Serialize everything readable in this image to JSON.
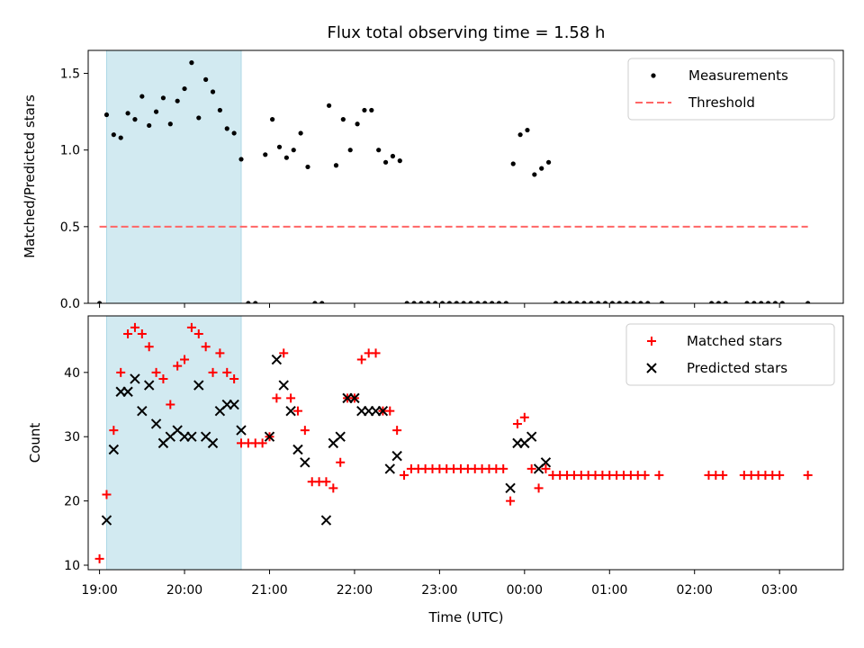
{
  "title": "Flux total observing time = 1.58 h",
  "colors": {
    "shade": "#add8e6",
    "measurement": "#000000",
    "threshold": "#ff6666",
    "matched": "#ff0000",
    "predicted": "#000000"
  },
  "chart_data": [
    {
      "type": "scatter",
      "ylabel": "Matched/Predicted stars",
      "xlim": [
        "18:52",
        "03:45"
      ],
      "ylim": [
        0,
        1.65
      ],
      "yticks": [
        0.0,
        0.5,
        1.0,
        1.5
      ],
      "ytick_labels": [
        "0.0",
        "0.5",
        "1.0",
        "1.5"
      ],
      "legend_position": "top-right",
      "shaded_interval": [
        "19:05",
        "20:40"
      ],
      "threshold": {
        "name": "Threshold",
        "y": 0.5,
        "x": [
          "19:00",
          "03:20"
        ],
        "style": "dashed"
      },
      "series": [
        {
          "name": "Measurements",
          "marker": "dot",
          "points": [
            [
              "19:00",
              0.0
            ],
            [
              "19:05",
              1.23
            ],
            [
              "19:10",
              1.1
            ],
            [
              "19:15",
              1.08
            ],
            [
              "19:20",
              1.24
            ],
            [
              "19:25",
              1.2
            ],
            [
              "19:30",
              1.35
            ],
            [
              "19:35",
              1.16
            ],
            [
              "19:40",
              1.25
            ],
            [
              "19:45",
              1.34
            ],
            [
              "19:50",
              1.17
            ],
            [
              "19:55",
              1.32
            ],
            [
              "20:00",
              1.4
            ],
            [
              "20:05",
              1.57
            ],
            [
              "20:10",
              1.21
            ],
            [
              "20:15",
              1.46
            ],
            [
              "20:20",
              1.38
            ],
            [
              "20:25",
              1.26
            ],
            [
              "20:30",
              1.14
            ],
            [
              "20:35",
              1.11
            ],
            [
              "20:40",
              0.94
            ],
            [
              "20:45",
              0.0
            ],
            [
              "20:50",
              0.0
            ],
            [
              "20:57",
              0.97
            ],
            [
              "21:02",
              1.2
            ],
            [
              "21:07",
              1.02
            ],
            [
              "21:12",
              0.95
            ],
            [
              "21:17",
              1.0
            ],
            [
              "21:22",
              1.11
            ],
            [
              "21:27",
              0.89
            ],
            [
              "21:32",
              0.0
            ],
            [
              "21:37",
              0.0
            ],
            [
              "21:42",
              1.29
            ],
            [
              "21:47",
              0.9
            ],
            [
              "21:52",
              1.2
            ],
            [
              "21:57",
              1.0
            ],
            [
              "22:02",
              1.17
            ],
            [
              "22:07",
              1.26
            ],
            [
              "22:12",
              1.26
            ],
            [
              "22:17",
              1.0
            ],
            [
              "22:22",
              0.92
            ],
            [
              "22:27",
              0.96
            ],
            [
              "22:32",
              0.93
            ],
            [
              "22:37",
              0.0
            ],
            [
              "22:42",
              0.0
            ],
            [
              "22:47",
              0.0
            ],
            [
              "22:52",
              0.0
            ],
            [
              "22:57",
              0.0
            ],
            [
              "23:02",
              0.0
            ],
            [
              "23:07",
              0.0
            ],
            [
              "23:12",
              0.0
            ],
            [
              "23:17",
              0.0
            ],
            [
              "23:22",
              0.0
            ],
            [
              "23:27",
              0.0
            ],
            [
              "23:32",
              0.0
            ],
            [
              "23:37",
              0.0
            ],
            [
              "23:42",
              0.0
            ],
            [
              "23:47",
              0.0
            ],
            [
              "23:52",
              0.91
            ],
            [
              "23:57",
              1.1
            ],
            [
              "00:02",
              1.13
            ],
            [
              "00:07",
              0.84
            ],
            [
              "00:12",
              0.88
            ],
            [
              "00:17",
              0.92
            ],
            [
              "00:22",
              0.0
            ],
            [
              "00:27",
              0.0
            ],
            [
              "00:32",
              0.0
            ],
            [
              "00:37",
              0.0
            ],
            [
              "00:42",
              0.0
            ],
            [
              "00:47",
              0.0
            ],
            [
              "00:52",
              0.0
            ],
            [
              "00:57",
              0.0
            ],
            [
              "01:02",
              0.0
            ],
            [
              "01:07",
              0.0
            ],
            [
              "01:12",
              0.0
            ],
            [
              "01:17",
              0.0
            ],
            [
              "01:22",
              0.0
            ],
            [
              "01:27",
              0.0
            ],
            [
              "01:37",
              0.0
            ],
            [
              "02:12",
              0.0
            ],
            [
              "02:17",
              0.0
            ],
            [
              "02:22",
              0.0
            ],
            [
              "02:37",
              0.0
            ],
            [
              "02:42",
              0.0
            ],
            [
              "02:47",
              0.0
            ],
            [
              "02:52",
              0.0
            ],
            [
              "02:57",
              0.0
            ],
            [
              "03:02",
              0.0
            ],
            [
              "03:20",
              0.0
            ]
          ]
        }
      ]
    },
    {
      "type": "scatter",
      "ylabel": "Count",
      "xlabel": "Time (UTC)",
      "xlim": [
        "18:52",
        "03:45"
      ],
      "ylim": [
        9.3,
        48.8
      ],
      "yticks": [
        10,
        20,
        30,
        40
      ],
      "ytick_labels": [
        "10",
        "20",
        "30",
        "40"
      ],
      "xtick_labels": [
        "19:00",
        "20:00",
        "21:00",
        "22:00",
        "23:00",
        "00:00",
        "01:00",
        "02:00",
        "03:00"
      ],
      "legend_position": "top-right",
      "shaded_interval": [
        "19:05",
        "20:40"
      ],
      "series": [
        {
          "name": "Matched stars",
          "marker": "plus",
          "points": [
            [
              "19:00",
              11
            ],
            [
              "19:05",
              21
            ],
            [
              "19:10",
              31
            ],
            [
              "19:15",
              40
            ],
            [
              "19:20",
              46
            ],
            [
              "19:25",
              47
            ],
            [
              "19:30",
              46
            ],
            [
              "19:35",
              44
            ],
            [
              "19:40",
              40
            ],
            [
              "19:45",
              39
            ],
            [
              "19:50",
              35
            ],
            [
              "19:55",
              41
            ],
            [
              "20:00",
              42
            ],
            [
              "20:05",
              47
            ],
            [
              "20:10",
              46
            ],
            [
              "20:15",
              44
            ],
            [
              "20:20",
              40
            ],
            [
              "20:25",
              43
            ],
            [
              "20:30",
              40
            ],
            [
              "20:35",
              39
            ],
            [
              "20:40",
              29
            ],
            [
              "20:45",
              29
            ],
            [
              "20:50",
              29
            ],
            [
              "20:55",
              29
            ],
            [
              "21:00",
              30
            ],
            [
              "21:05",
              36
            ],
            [
              "21:10",
              43
            ],
            [
              "21:15",
              36
            ],
            [
              "21:20",
              34
            ],
            [
              "21:25",
              31
            ],
            [
              "21:30",
              23
            ],
            [
              "21:35",
              23
            ],
            [
              "21:40",
              23
            ],
            [
              "21:45",
              22
            ],
            [
              "21:50",
              26
            ],
            [
              "21:55",
              36
            ],
            [
              "22:00",
              36
            ],
            [
              "22:05",
              42
            ],
            [
              "22:10",
              43
            ],
            [
              "22:15",
              43
            ],
            [
              "22:20",
              34
            ],
            [
              "22:25",
              34
            ],
            [
              "22:30",
              31
            ],
            [
              "22:35",
              24
            ],
            [
              "22:40",
              25
            ],
            [
              "22:45",
              25
            ],
            [
              "22:50",
              25
            ],
            [
              "22:55",
              25
            ],
            [
              "23:00",
              25
            ],
            [
              "23:05",
              25
            ],
            [
              "23:10",
              25
            ],
            [
              "23:15",
              25
            ],
            [
              "23:20",
              25
            ],
            [
              "23:25",
              25
            ],
            [
              "23:30",
              25
            ],
            [
              "23:35",
              25
            ],
            [
              "23:40",
              25
            ],
            [
              "23:45",
              25
            ],
            [
              "23:50",
              20
            ],
            [
              "23:55",
              32
            ],
            [
              "00:00",
              33
            ],
            [
              "00:05",
              25
            ],
            [
              "00:10",
              22
            ],
            [
              "00:15",
              25
            ],
            [
              "00:20",
              24
            ],
            [
              "00:25",
              24
            ],
            [
              "00:30",
              24
            ],
            [
              "00:35",
              24
            ],
            [
              "00:40",
              24
            ],
            [
              "00:45",
              24
            ],
            [
              "00:50",
              24
            ],
            [
              "00:55",
              24
            ],
            [
              "01:00",
              24
            ],
            [
              "01:05",
              24
            ],
            [
              "01:10",
              24
            ],
            [
              "01:15",
              24
            ],
            [
              "01:20",
              24
            ],
            [
              "01:25",
              24
            ],
            [
              "01:35",
              24
            ],
            [
              "02:10",
              24
            ],
            [
              "02:15",
              24
            ],
            [
              "02:20",
              24
            ],
            [
              "02:35",
              24
            ],
            [
              "02:40",
              24
            ],
            [
              "02:45",
              24
            ],
            [
              "02:50",
              24
            ],
            [
              "02:55",
              24
            ],
            [
              "03:00",
              24
            ],
            [
              "03:20",
              24
            ]
          ]
        },
        {
          "name": "Predicted stars",
          "marker": "x",
          "points": [
            [
              "19:05",
              17
            ],
            [
              "19:10",
              28
            ],
            [
              "19:15",
              37
            ],
            [
              "19:20",
              37
            ],
            [
              "19:25",
              39
            ],
            [
              "19:30",
              34
            ],
            [
              "19:35",
              38
            ],
            [
              "19:40",
              32
            ],
            [
              "19:45",
              29
            ],
            [
              "19:50",
              30
            ],
            [
              "19:55",
              31
            ],
            [
              "20:00",
              30
            ],
            [
              "20:05",
              30
            ],
            [
              "20:10",
              38
            ],
            [
              "20:15",
              30
            ],
            [
              "20:20",
              29
            ],
            [
              "20:25",
              34
            ],
            [
              "20:30",
              35
            ],
            [
              "20:35",
              35
            ],
            [
              "20:40",
              31
            ],
            [
              "21:00",
              30
            ],
            [
              "21:05",
              42
            ],
            [
              "21:10",
              38
            ],
            [
              "21:15",
              34
            ],
            [
              "21:20",
              28
            ],
            [
              "21:25",
              26
            ],
            [
              "21:40",
              17
            ],
            [
              "21:45",
              29
            ],
            [
              "21:50",
              30
            ],
            [
              "21:55",
              36
            ],
            [
              "22:00",
              36
            ],
            [
              "22:05",
              34
            ],
            [
              "22:10",
              34
            ],
            [
              "22:15",
              34
            ],
            [
              "22:20",
              34
            ],
            [
              "22:25",
              25
            ],
            [
              "22:30",
              27
            ],
            [
              "23:50",
              22
            ],
            [
              "23:55",
              29
            ],
            [
              "00:00",
              29
            ],
            [
              "00:05",
              30
            ],
            [
              "00:10",
              25
            ],
            [
              "00:15",
              26
            ]
          ]
        }
      ]
    }
  ]
}
